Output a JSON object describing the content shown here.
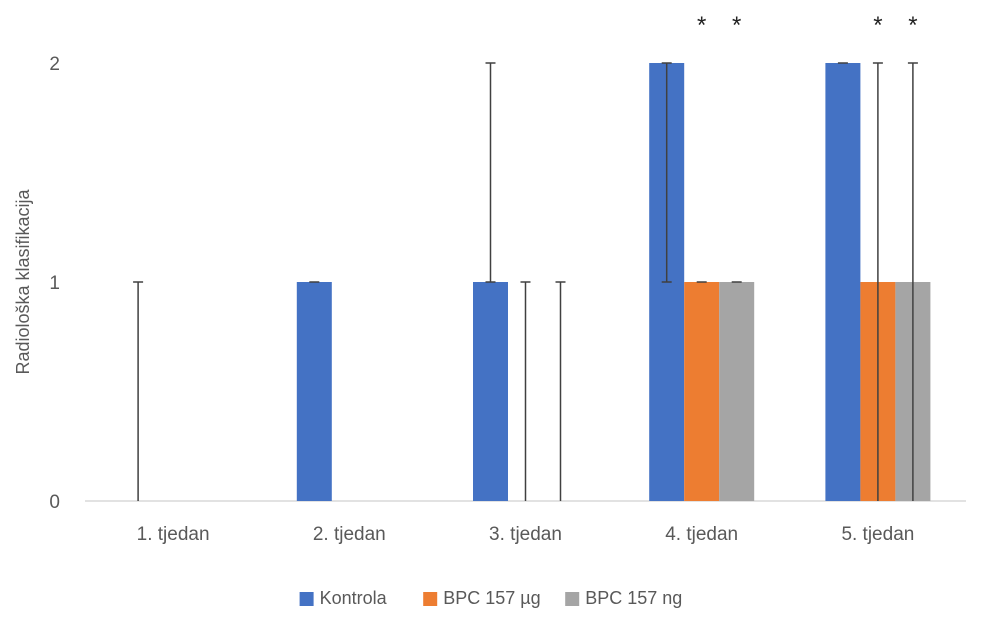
{
  "chart_data": {
    "type": "bar",
    "title": "",
    "xlabel": "",
    "ylabel": "Radiološka klasifikacija",
    "ylim": [
      0,
      2
    ],
    "yticks": [
      "0",
      "1",
      "2"
    ],
    "categories": [
      "1. tjedan",
      "2. tjedan",
      "3. tjedan",
      "4. tjedan",
      "5. tjedan"
    ],
    "grid": false,
    "legend_position": "bottom",
    "series": [
      {
        "name": "Kontrola",
        "color": "#4472C4",
        "values": [
          0,
          1,
          1,
          2,
          2
        ],
        "error_low": [
          0,
          1,
          1,
          1,
          2
        ],
        "error_high": [
          1,
          1,
          2,
          2,
          2
        ]
      },
      {
        "name": "BPC 157 µg",
        "color": "#ED7D31",
        "values": [
          0,
          0,
          0,
          1,
          1
        ],
        "error_low": [
          0,
          0,
          0,
          1,
          0
        ],
        "error_high": [
          0,
          0,
          1,
          1,
          2
        ]
      },
      {
        "name": "BPC 157  ng",
        "color": "#A5A5A5",
        "values": [
          0,
          0,
          0,
          1,
          1
        ],
        "error_low": [
          0,
          0,
          0,
          1,
          0
        ],
        "error_high": [
          0,
          0,
          1,
          1,
          2
        ]
      }
    ],
    "annotations": [
      {
        "category": 3,
        "series": 1,
        "text": "*"
      },
      {
        "category": 3,
        "series": 2,
        "text": "*"
      },
      {
        "category": 4,
        "series": 1,
        "text": "*"
      },
      {
        "category": 4,
        "series": 2,
        "text": "*"
      }
    ]
  }
}
